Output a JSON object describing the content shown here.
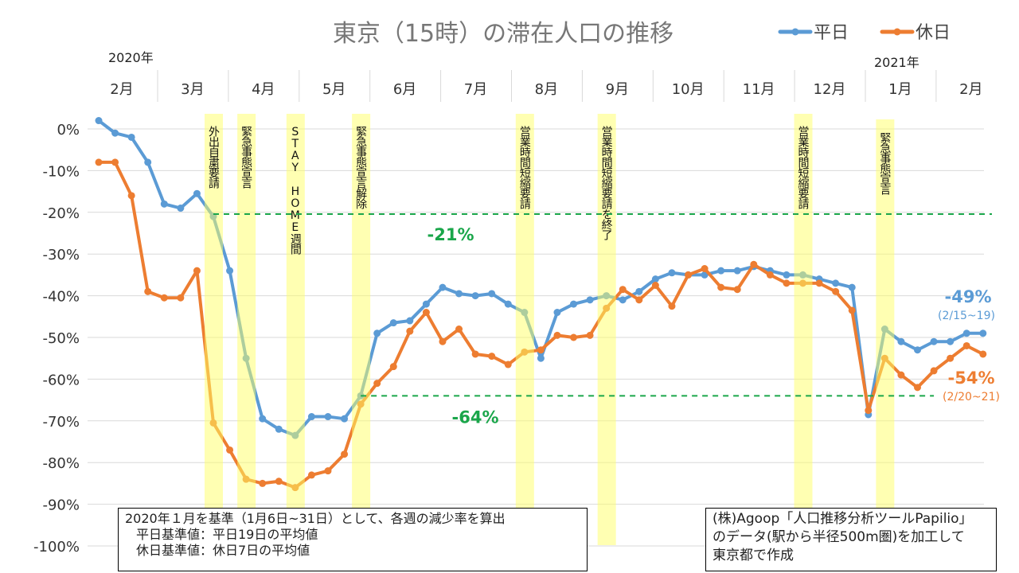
{
  "chart_data": {
    "type": "line",
    "title": "東京（15時）の滞在人口の推移",
    "year_labels": [
      "2020年",
      "2021年"
    ],
    "month_labels": [
      "2月",
      "3月",
      "4月",
      "5月",
      "6月",
      "7月",
      "8月",
      "9月",
      "10月",
      "11月",
      "12月",
      "1月",
      "2月"
    ],
    "y_ticks": [
      "0%",
      "-10%",
      "-20%",
      "-30%",
      "-40%",
      "-50%",
      "-60%",
      "-70%",
      "-80%",
      "-90%",
      "-100%"
    ],
    "ylim": [
      -100,
      0
    ],
    "x_unit": "week index (weekly points from Feb 2020 to Feb 2021)",
    "series": [
      {
        "name": "平日",
        "color": "#5B9BD5",
        "values": [
          2,
          -1,
          -2,
          -8,
          -18,
          -19,
          -15.5,
          -21,
          -34,
          -55,
          -69.5,
          -72,
          -73.5,
          -69,
          -69,
          -69.5,
          -64,
          -49,
          -46.5,
          -46,
          -42,
          -38,
          -39.5,
          -40,
          -39.5,
          -42,
          -44,
          -55,
          -44,
          -42,
          -41,
          -40,
          -41,
          -39,
          -36,
          -34.5,
          -35,
          -35,
          -34,
          -34,
          -33,
          -34,
          -35,
          -35,
          -36,
          -37,
          -38,
          -68.5,
          -48,
          -51,
          -53,
          -51,
          -51,
          -49,
          -49
        ]
      },
      {
        "name": "休日",
        "color": "#ED7D31",
        "values": [
          -8,
          -8,
          -16,
          -39,
          -40.5,
          -40.5,
          -34,
          -70.5,
          -77,
          -84,
          -85,
          -84.5,
          -86,
          -83,
          -82,
          -78,
          -66,
          -61,
          -57,
          -48.5,
          -44,
          -51,
          -48,
          -54,
          -54.5,
          -56.5,
          -53.5,
          -53,
          -49.5,
          -50,
          -49.5,
          -43,
          -38.5,
          -41,
          -37.5,
          -42.5,
          -35,
          -33.5,
          -38,
          -38.5,
          -32.5,
          -35,
          -37,
          -37,
          -37,
          -39,
          -43.5,
          -67.5,
          -55,
          -59,
          -62,
          -58,
          -55,
          -52,
          -54
        ]
      }
    ],
    "events": [
      {
        "label": "外出自粛要請",
        "week": 7
      },
      {
        "label": "緊急事態宣言",
        "week": 9
      },
      {
        "label": "STAY HOME週間",
        "week": 12
      },
      {
        "label": "緊急事態宣言解除",
        "week": 16
      },
      {
        "label": "営業時間短縮要請",
        "week": 26
      },
      {
        "label": "営業時間短縮要請を終了",
        "week": 31
      },
      {
        "label": "営業時間短縮要請",
        "week": 43
      },
      {
        "label": "緊急事態宣言",
        "week": 48
      }
    ],
    "reference_lines": [
      {
        "value": -21,
        "label": "-21%",
        "from_week": 7,
        "color": "#1AA64A"
      },
      {
        "value": -64,
        "label": "-64%",
        "from_week": 16,
        "to_week": 51,
        "color": "#1AA64A"
      }
    ],
    "annotations": {
      "weekday_latest": {
        "value": "-49%",
        "period": "(2/15~19)"
      },
      "holiday_latest": {
        "value": "-54%",
        "period": "(2/20~21)"
      }
    },
    "legend": "top-right"
  },
  "notes": {
    "basis": [
      "2020年１月を基準（1月6日~31日）として、各週の減少率を算出",
      "平日基準値：平日19日の平均値",
      "休日基準値：休日7日の平均値"
    ],
    "source": [
      "(株)Agoop「人口推移分析ツールPapilio」",
      "のデータ(駅から半径500m圏)を加工して",
      "東京都で作成"
    ]
  }
}
